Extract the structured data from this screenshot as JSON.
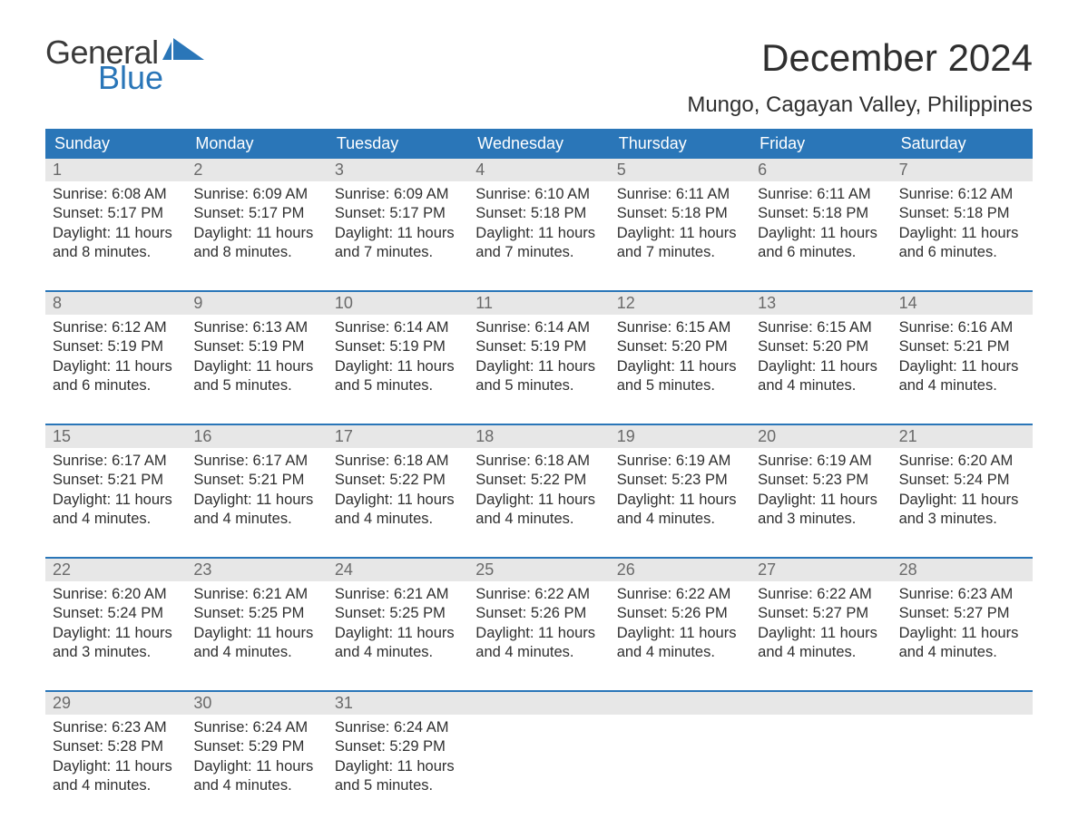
{
  "brand": {
    "line1": "General",
    "line2": "Blue",
    "flag_color": "#2a76b8"
  },
  "title": "December 2024",
  "location": "Mungo, Cagayan Valley, Philippines",
  "colors": {
    "header_bg": "#2a76b8",
    "header_text": "#ffffff",
    "daynum_bg": "#e7e7e7",
    "daynum_text": "#6a6a6a",
    "body_text": "#2f2f2f",
    "week_divider": "#2a76b8",
    "page_bg": "#ffffff"
  },
  "typography": {
    "title_fontsize": 42,
    "location_fontsize": 24,
    "header_fontsize": 18,
    "daynum_fontsize": 18,
    "cell_fontsize": 16.5,
    "logo_fontsize": 36
  },
  "day_labels": [
    "Sunday",
    "Monday",
    "Tuesday",
    "Wednesday",
    "Thursday",
    "Friday",
    "Saturday"
  ],
  "weeks": [
    [
      {
        "n": "1",
        "sunrise": "6:08 AM",
        "sunset": "5:17 PM",
        "daylight": "11 hours and 8 minutes."
      },
      {
        "n": "2",
        "sunrise": "6:09 AM",
        "sunset": "5:17 PM",
        "daylight": "11 hours and 8 minutes."
      },
      {
        "n": "3",
        "sunrise": "6:09 AM",
        "sunset": "5:17 PM",
        "daylight": "11 hours and 7 minutes."
      },
      {
        "n": "4",
        "sunrise": "6:10 AM",
        "sunset": "5:18 PM",
        "daylight": "11 hours and 7 minutes."
      },
      {
        "n": "5",
        "sunrise": "6:11 AM",
        "sunset": "5:18 PM",
        "daylight": "11 hours and 7 minutes."
      },
      {
        "n": "6",
        "sunrise": "6:11 AM",
        "sunset": "5:18 PM",
        "daylight": "11 hours and 6 minutes."
      },
      {
        "n": "7",
        "sunrise": "6:12 AM",
        "sunset": "5:18 PM",
        "daylight": "11 hours and 6 minutes."
      }
    ],
    [
      {
        "n": "8",
        "sunrise": "6:12 AM",
        "sunset": "5:19 PM",
        "daylight": "11 hours and 6 minutes."
      },
      {
        "n": "9",
        "sunrise": "6:13 AM",
        "sunset": "5:19 PM",
        "daylight": "11 hours and 5 minutes."
      },
      {
        "n": "10",
        "sunrise": "6:14 AM",
        "sunset": "5:19 PM",
        "daylight": "11 hours and 5 minutes."
      },
      {
        "n": "11",
        "sunrise": "6:14 AM",
        "sunset": "5:19 PM",
        "daylight": "11 hours and 5 minutes."
      },
      {
        "n": "12",
        "sunrise": "6:15 AM",
        "sunset": "5:20 PM",
        "daylight": "11 hours and 5 minutes."
      },
      {
        "n": "13",
        "sunrise": "6:15 AM",
        "sunset": "5:20 PM",
        "daylight": "11 hours and 4 minutes."
      },
      {
        "n": "14",
        "sunrise": "6:16 AM",
        "sunset": "5:21 PM",
        "daylight": "11 hours and 4 minutes."
      }
    ],
    [
      {
        "n": "15",
        "sunrise": "6:17 AM",
        "sunset": "5:21 PM",
        "daylight": "11 hours and 4 minutes."
      },
      {
        "n": "16",
        "sunrise": "6:17 AM",
        "sunset": "5:21 PM",
        "daylight": "11 hours and 4 minutes."
      },
      {
        "n": "17",
        "sunrise": "6:18 AM",
        "sunset": "5:22 PM",
        "daylight": "11 hours and 4 minutes."
      },
      {
        "n": "18",
        "sunrise": "6:18 AM",
        "sunset": "5:22 PM",
        "daylight": "11 hours and 4 minutes."
      },
      {
        "n": "19",
        "sunrise": "6:19 AM",
        "sunset": "5:23 PM",
        "daylight": "11 hours and 4 minutes."
      },
      {
        "n": "20",
        "sunrise": "6:19 AM",
        "sunset": "5:23 PM",
        "daylight": "11 hours and 3 minutes."
      },
      {
        "n": "21",
        "sunrise": "6:20 AM",
        "sunset": "5:24 PM",
        "daylight": "11 hours and 3 minutes."
      }
    ],
    [
      {
        "n": "22",
        "sunrise": "6:20 AM",
        "sunset": "5:24 PM",
        "daylight": "11 hours and 3 minutes."
      },
      {
        "n": "23",
        "sunrise": "6:21 AM",
        "sunset": "5:25 PM",
        "daylight": "11 hours and 4 minutes."
      },
      {
        "n": "24",
        "sunrise": "6:21 AM",
        "sunset": "5:25 PM",
        "daylight": "11 hours and 4 minutes."
      },
      {
        "n": "25",
        "sunrise": "6:22 AM",
        "sunset": "5:26 PM",
        "daylight": "11 hours and 4 minutes."
      },
      {
        "n": "26",
        "sunrise": "6:22 AM",
        "sunset": "5:26 PM",
        "daylight": "11 hours and 4 minutes."
      },
      {
        "n": "27",
        "sunrise": "6:22 AM",
        "sunset": "5:27 PM",
        "daylight": "11 hours and 4 minutes."
      },
      {
        "n": "28",
        "sunrise": "6:23 AM",
        "sunset": "5:27 PM",
        "daylight": "11 hours and 4 minutes."
      }
    ],
    [
      {
        "n": "29",
        "sunrise": "6:23 AM",
        "sunset": "5:28 PM",
        "daylight": "11 hours and 4 minutes."
      },
      {
        "n": "30",
        "sunrise": "6:24 AM",
        "sunset": "5:29 PM",
        "daylight": "11 hours and 4 minutes."
      },
      {
        "n": "31",
        "sunrise": "6:24 AM",
        "sunset": "5:29 PM",
        "daylight": "11 hours and 5 minutes."
      },
      null,
      null,
      null,
      null
    ]
  ],
  "labels": {
    "sunrise": "Sunrise: ",
    "sunset": "Sunset: ",
    "daylight": "Daylight: "
  }
}
